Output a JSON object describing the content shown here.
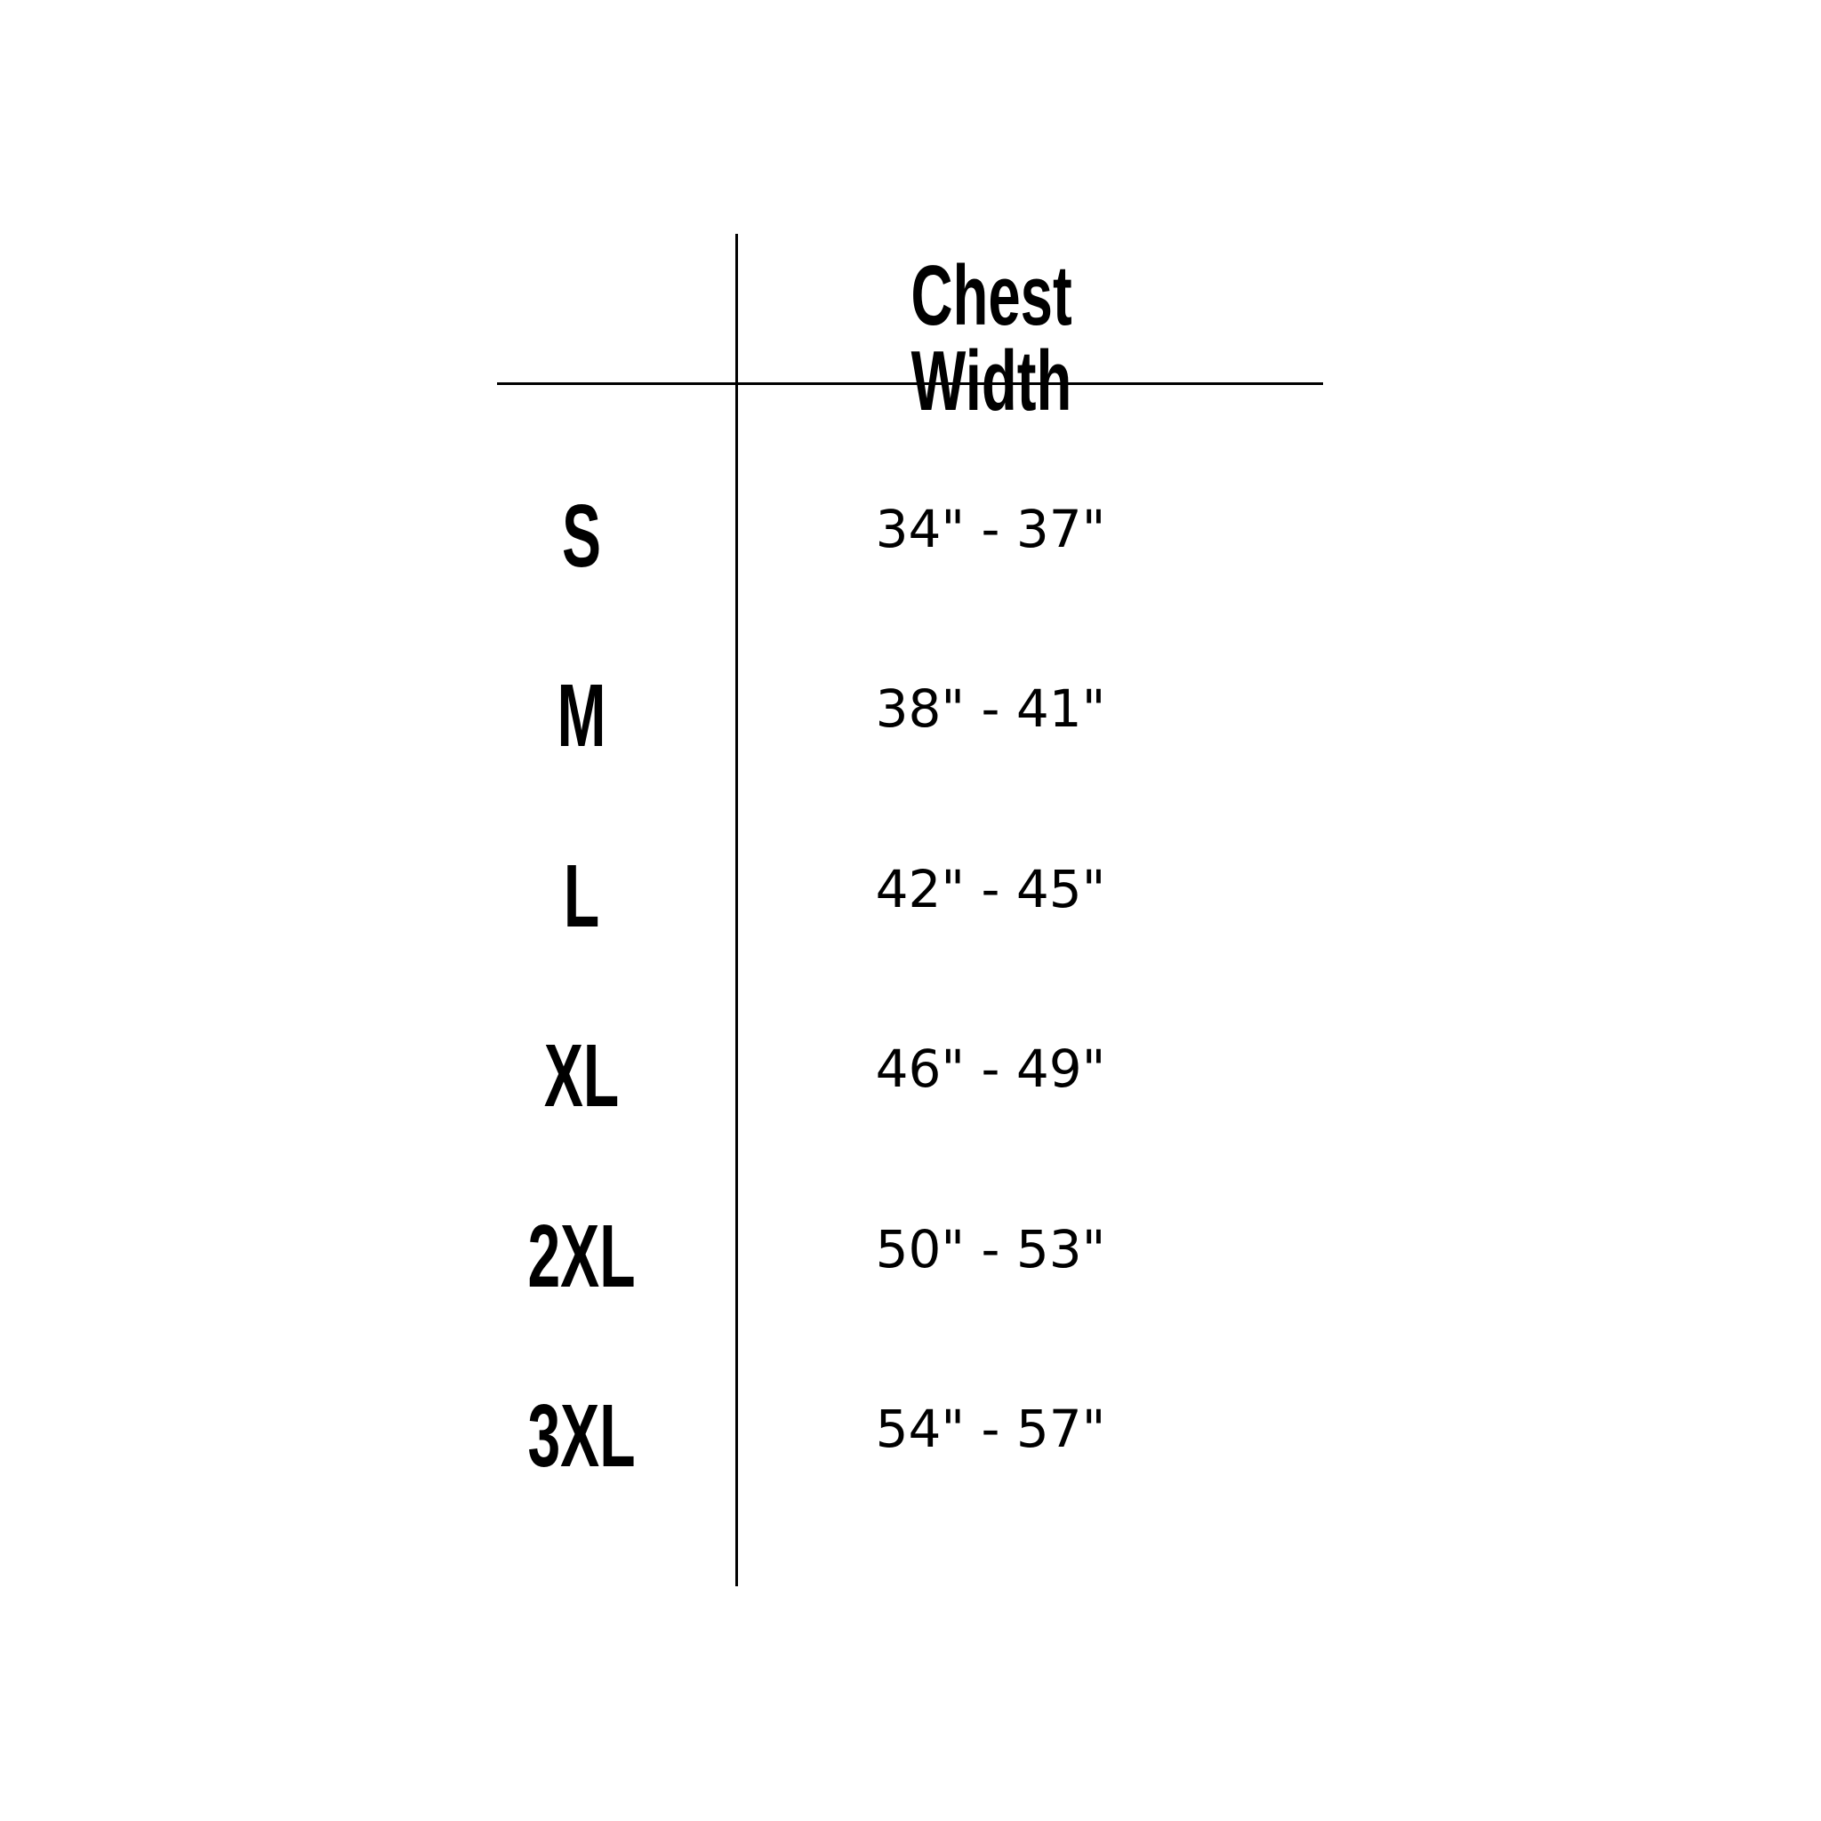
{
  "table": {
    "header": "Chest Width",
    "rows": [
      {
        "size": "S",
        "chest": "34\" - 37\""
      },
      {
        "size": "M",
        "chest": "38\" - 41\""
      },
      {
        "size": "L",
        "chest": "42\" - 45\""
      },
      {
        "size": "XL",
        "chest": "46\" - 49\""
      },
      {
        "size": "2XL",
        "chest": "50\" - 53\""
      },
      {
        "size": "3XL",
        "chest": "54\" - 57\""
      }
    ]
  }
}
